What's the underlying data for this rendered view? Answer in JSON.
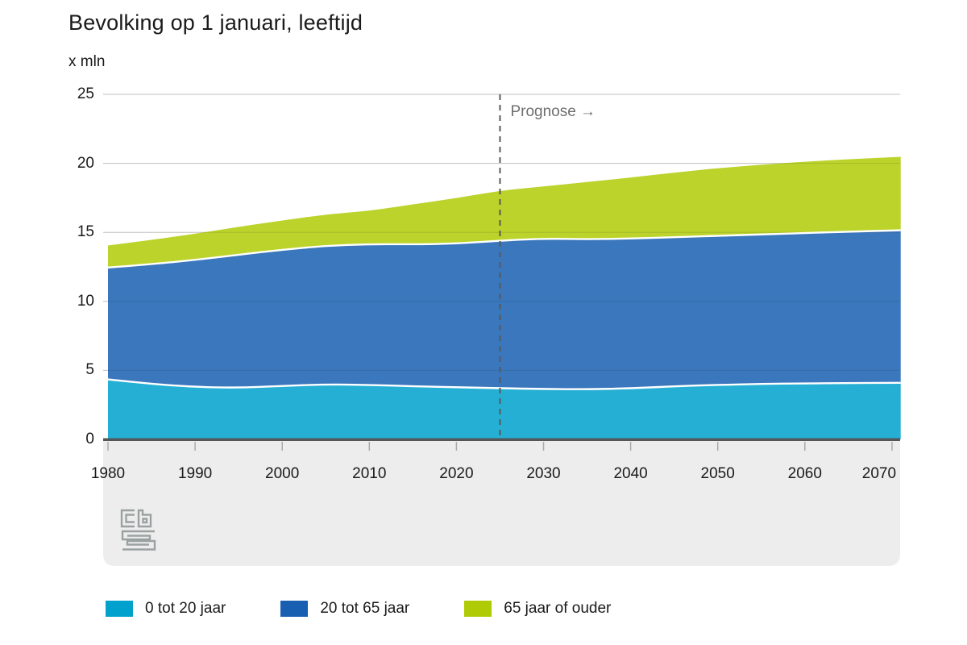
{
  "title": "Bevolking op 1 januari, leeftijd",
  "unit_label": "x mln",
  "prognose_label": "Prognose →",
  "branding": {
    "logo": "cbs-logo"
  },
  "colors": {
    "legend_cyan": "#00a1cd",
    "legend_blue": "#185fb2",
    "legend_green": "#afcb05",
    "footer_band": "#ededed",
    "axis_line": "#54575a",
    "grid_line": "#d4d4d4",
    "prognose_line": "#5a5a5a"
  },
  "legend": {
    "items": [
      {
        "label": "0 tot 20 jaar",
        "color": "#00a1cd"
      },
      {
        "label": "20 tot 65 jaar",
        "color": "#185fb2"
      },
      {
        "label": "65 jaar of ouder",
        "color": "#afcb05"
      }
    ]
  },
  "chart_data": {
    "type": "area",
    "stacked": true,
    "title": "Bevolking op 1 januari, leeftijd",
    "ylabel": "x mln",
    "xlabel": "",
    "ylim": [
      0,
      25
    ],
    "grid": true,
    "legend_position": "bottom",
    "area_opacity": 0.85,
    "y_ticks": [
      0,
      5,
      10,
      15,
      20,
      25
    ],
    "x_ticks": [
      1980,
      1990,
      2000,
      2010,
      2020,
      2030,
      2040,
      2050,
      2060,
      2070
    ],
    "prognose_year": 2025,
    "x": [
      1980,
      1985,
      1990,
      1995,
      2000,
      2005,
      2010,
      2015,
      2020,
      2025,
      2030,
      2035,
      2040,
      2045,
      2050,
      2055,
      2060,
      2065,
      2071
    ],
    "series": [
      {
        "name": "0 tot 20 jaar",
        "color": "#00a1cd",
        "values": [
          4.35,
          4.02,
          3.8,
          3.74,
          3.87,
          3.99,
          3.95,
          3.85,
          3.78,
          3.71,
          3.65,
          3.63,
          3.7,
          3.85,
          3.95,
          4.02,
          4.06,
          4.08,
          4.1
        ]
      },
      {
        "name": "20 tot 65 jaar",
        "color": "#185fb2",
        "values": [
          8.1,
          8.68,
          9.2,
          9.64,
          9.87,
          10.04,
          10.2,
          10.28,
          10.4,
          10.69,
          10.9,
          10.87,
          10.85,
          10.8,
          10.8,
          10.83,
          10.89,
          10.97,
          11.05
        ]
      },
      {
        "name": "65 jaar of ouder",
        "color": "#afcb05",
        "values": [
          1.6,
          1.75,
          1.9,
          2.02,
          2.12,
          2.27,
          2.4,
          2.9,
          3.3,
          3.62,
          3.78,
          4.15,
          4.42,
          4.68,
          4.9,
          5.05,
          5.17,
          5.25,
          5.32
        ]
      }
    ]
  }
}
